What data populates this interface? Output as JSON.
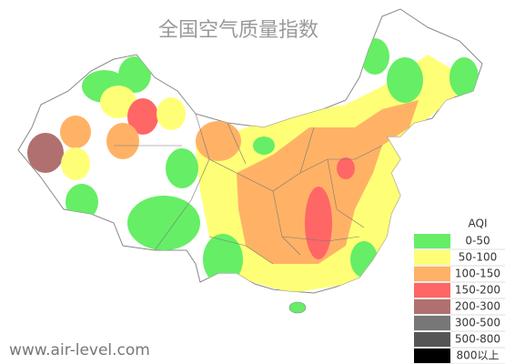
{
  "title": "全国空气质量指数",
  "legend": {
    "title": "AQI",
    "items": [
      {
        "label": "0-50",
        "color": "#66ee66"
      },
      {
        "label": "50-100",
        "color": "#ffff77"
      },
      {
        "label": "100-150",
        "color": "#ffb266"
      },
      {
        "label": "150-200",
        "color": "#ff6666"
      },
      {
        "label": "200-300",
        "color": "#b07070"
      },
      {
        "label": "300-500",
        "color": "#777777"
      },
      {
        "label": "500-800",
        "color": "#555555"
      },
      {
        "label": "800以上",
        "color": "#000000"
      }
    ]
  },
  "footer": "www.air-level.com"
}
